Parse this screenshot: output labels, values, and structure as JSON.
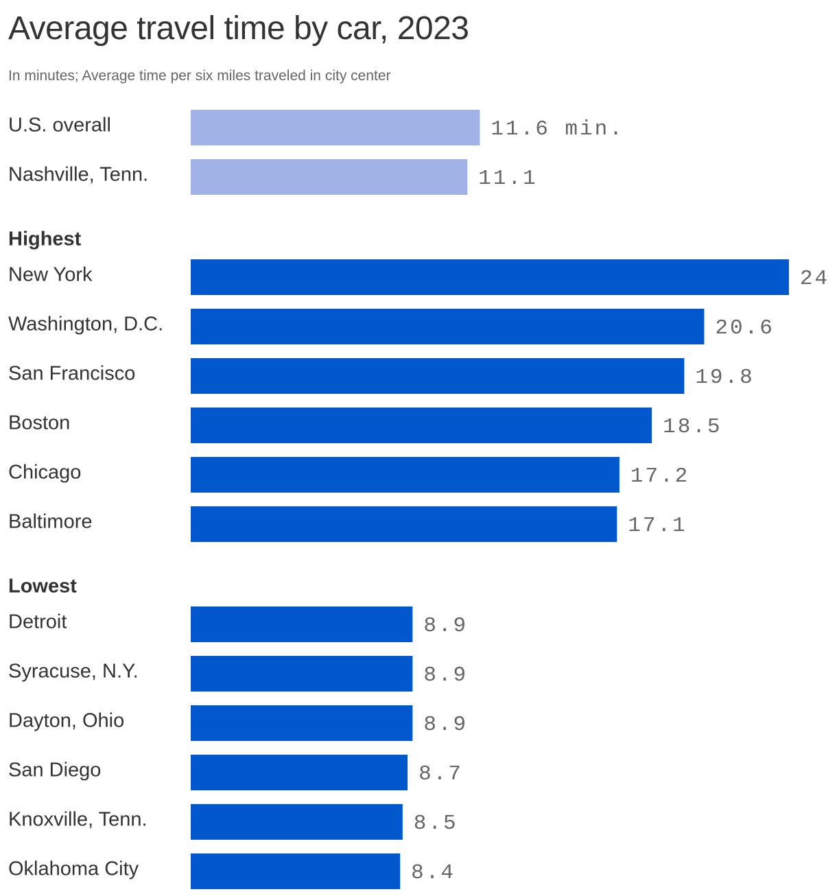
{
  "title": "Average travel time by car, 2023",
  "subtitle": "In minutes; Average time per six miles traveled in city center",
  "colors": {
    "reference_bar": "#a1b2e6",
    "main_bar": "#0157cc",
    "label_text": "#333333",
    "value_text": "#666666"
  },
  "chart_data": {
    "type": "bar",
    "orientation": "horizontal",
    "title": "Average travel time by car, 2023",
    "subtitle": "In minutes; Average time per six miles traveled in city center",
    "unit_label": "min.",
    "xlim": [
      0,
      24
    ],
    "grid": false,
    "legend": "none",
    "groups": [
      {
        "name": "",
        "color": "#a1b2e6",
        "categories": [
          "U.S. overall",
          "Nashville, Tenn."
        ],
        "values": [
          11.6,
          11.1
        ],
        "value_labels": [
          "11.6 min.",
          "11.1"
        ]
      },
      {
        "name": "Highest",
        "color": "#0157cc",
        "categories": [
          "New York",
          "Washington, D.C.",
          "San Francisco",
          "Boston",
          "Chicago",
          "Baltimore"
        ],
        "values": [
          24,
          20.6,
          19.8,
          18.5,
          17.2,
          17.1
        ],
        "value_labels": [
          "24",
          "20.6",
          "19.8",
          "18.5",
          "17.2",
          "17.1"
        ]
      },
      {
        "name": "Lowest",
        "color": "#0157cc",
        "categories": [
          "Detroit",
          "Syracuse, N.Y.",
          "Dayton, Ohio",
          "San Diego",
          "Knoxville, Tenn.",
          "Oklahoma City"
        ],
        "values": [
          8.9,
          8.9,
          8.9,
          8.7,
          8.5,
          8.4
        ],
        "value_labels": [
          "8.9",
          "8.9",
          "8.9",
          "8.7",
          "8.5",
          "8.4"
        ]
      }
    ]
  }
}
